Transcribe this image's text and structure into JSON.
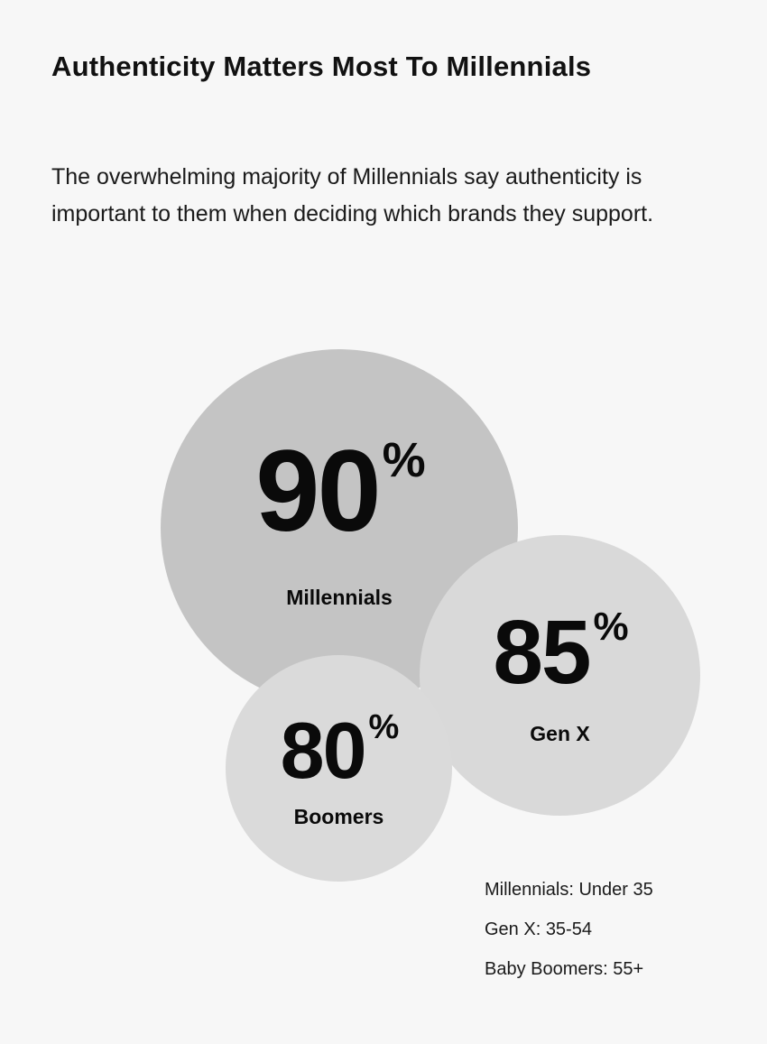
{
  "title": "Authenticity Matters Most To Millennials",
  "intro": "The overwhelming majority of Millennials say authenticity is important to them when deciding which brands they support.",
  "chart_data": {
    "type": "bubble",
    "title": "",
    "unit": "%",
    "categories": [
      "Millennials",
      "Gen X",
      "Boomers"
    ],
    "values": [
      90,
      85,
      80
    ],
    "colors": [
      "#c4c4c4",
      "#d9d9d9",
      "#dadada"
    ]
  },
  "legend": [
    "Millennials: Under 35",
    "Gen X: 35-54",
    "Baby Boomers: 55+"
  ]
}
